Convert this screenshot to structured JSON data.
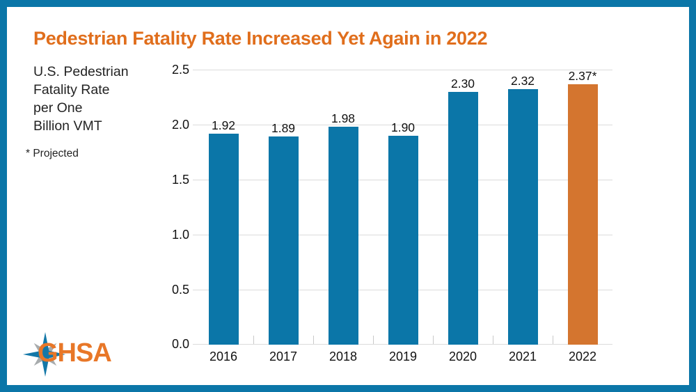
{
  "page": {
    "border_color": "#0B76A8",
    "background_color": "#FFFFFF"
  },
  "header": {
    "title": "Pedestrian Fatality Rate Increased Yet Again in 2022",
    "title_color": "#E06E1C"
  },
  "sidebar": {
    "axis_title_lines": [
      "U.S. Pedestrian",
      "Fatality Rate",
      "per One",
      "Billion VMT"
    ],
    "footnote": "* Projected"
  },
  "logo": {
    "text": "GHSA",
    "text_color": "#E87728",
    "star_primary_color": "#1478A8",
    "star_secondary_color": "#A7ABAD"
  },
  "chart_data": {
    "type": "bar",
    "title": "Pedestrian Fatality Rate Increased Yet Again in 2022",
    "ylabel": "U.S. Pedestrian Fatality Rate per One Billion VMT",
    "xlabel": "",
    "categories": [
      "2016",
      "2017",
      "2018",
      "2019",
      "2020",
      "2021",
      "2022"
    ],
    "values": [
      1.92,
      1.89,
      1.98,
      1.9,
      2.3,
      2.32,
      2.37
    ],
    "value_labels": [
      "1.92",
      "1.89",
      "1.98",
      "1.90",
      "2.30",
      "2.32",
      "2.37*"
    ],
    "highlight_index": 6,
    "bar_default_color": "#0B76A8",
    "bar_highlight_color": "#D4752F",
    "ylim": [
      0,
      2.5
    ],
    "yticks": [
      0,
      0.5,
      1,
      1.5,
      2,
      2.5
    ],
    "ytick_labels": [
      "0.0",
      "0.5",
      "1.0",
      "1.5",
      "2.0",
      "2.5"
    ],
    "grid": true,
    "gridline_color": "#DBDBDB",
    "legend": "none",
    "annotations": [
      "* Projected"
    ]
  }
}
